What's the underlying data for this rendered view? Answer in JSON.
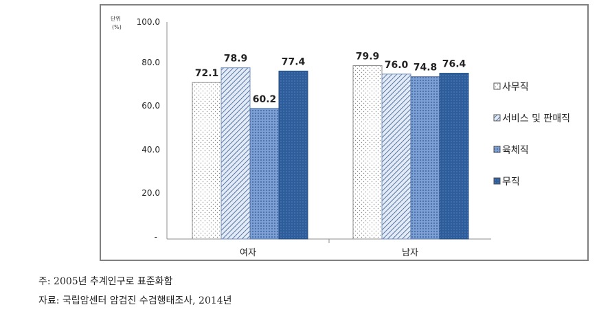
{
  "chart_data": {
    "type": "bar",
    "categories": [
      "여자",
      "남자"
    ],
    "series": [
      {
        "name": "사무직",
        "values": [
          72.1,
          79.9
        ],
        "pattern": "dots",
        "color": "#ffffff"
      },
      {
        "name": "서비스 및 판매직",
        "values": [
          78.9,
          76.0
        ],
        "pattern": "diag",
        "color": "#dfe8f4"
      },
      {
        "name": "육체직",
        "values": [
          60.2,
          74.8
        ],
        "pattern": "grid",
        "color": "#6a8fc8"
      },
      {
        "name": "무직",
        "values": [
          77.4,
          76.4
        ],
        "pattern": "dense",
        "color": "#2f5f9e"
      }
    ],
    "data_labels": [
      [
        "72.1",
        "79.9"
      ],
      [
        "78.9",
        "76.0"
      ],
      [
        "60.2",
        "74.8"
      ],
      [
        "77.4",
        "76.4"
      ]
    ],
    "ylim": [
      0,
      100
    ],
    "yticks": [
      "-",
      "20.0",
      "40.0",
      "60.0",
      "80.0",
      "100.0"
    ],
    "unit_label": [
      "단위",
      "(%)"
    ],
    "legend_position": "right",
    "grid": false
  },
  "notes": {
    "note1": "주: 2005년 추계인구로 표준화함",
    "note2": "자료: 국립암센터 암검진 수검행태조사, 2014년"
  }
}
